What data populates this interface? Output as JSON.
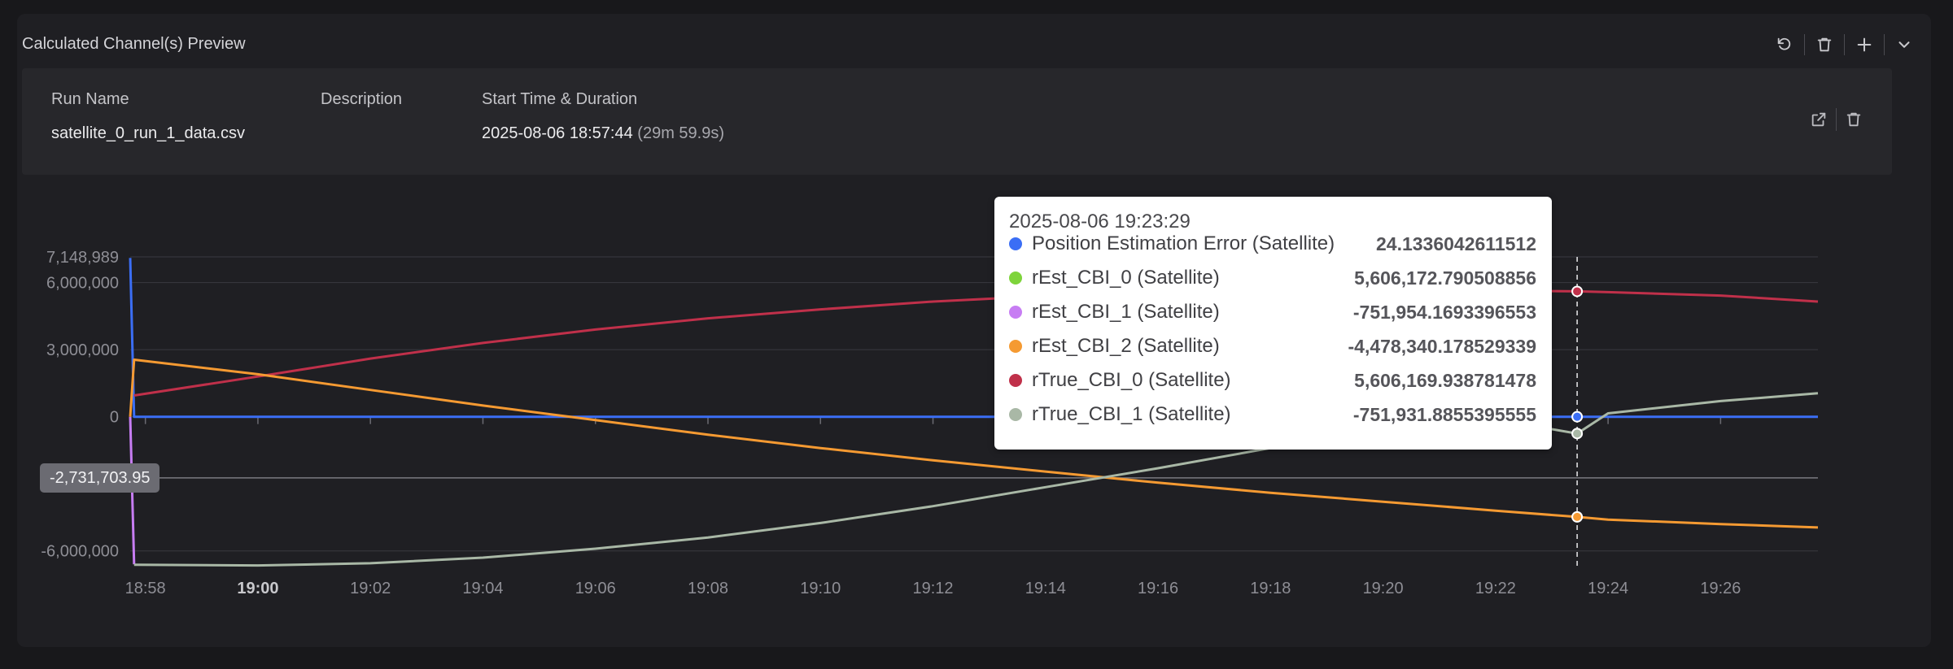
{
  "panel": {
    "title": "Calculated Channel(s) Preview",
    "toolbar": [
      {
        "name": "refresh-icon"
      },
      {
        "name": "trash-icon"
      },
      {
        "name": "plus-icon"
      },
      {
        "name": "chevron-down-icon"
      }
    ]
  },
  "run": {
    "headers": {
      "name": "Run Name",
      "description": "Description",
      "start": "Start Time & Duration"
    },
    "name": "satellite_0_run_1_data.csv",
    "description": "",
    "start_time": "2025-08-06 18:57:44",
    "duration": "(29m 59.9s)"
  },
  "tooltip": {
    "time": "2025-08-06 19:23:29",
    "rows": [
      {
        "name": "Position Estimation Error (Satellite)",
        "value": "24.1336042611512",
        "color": "#3b6ef5"
      },
      {
        "name": "rEst_CBI_0 (Satellite)",
        "value": "5,606,172.790508856",
        "color": "#7ed43b"
      },
      {
        "name": "rEst_CBI_1 (Satellite)",
        "value": "-751,954.1693396553",
        "color": "#c77df3"
      },
      {
        "name": "rEst_CBI_2 (Satellite)",
        "value": "-4,478,340.178529339",
        "color": "#f59a32"
      },
      {
        "name": "rTrue_CBI_0 (Satellite)",
        "value": "5,606,169.938781478",
        "color": "#c0304a"
      },
      {
        "name": "rTrue_CBI_1 (Satellite)",
        "value": "-751,931.8855395555",
        "color": "#a9b8a6"
      }
    ]
  },
  "cursor_value": "-2,731,703.95",
  "chart_data": {
    "type": "line",
    "x_unit": "time",
    "x_ticks": [
      "18:58",
      "19:00",
      "19:02",
      "19:04",
      "19:06",
      "19:08",
      "19:10",
      "19:12",
      "19:14",
      "19:16",
      "19:18",
      "19:20",
      "19:22",
      "19:24",
      "19:26"
    ],
    "x_bold_tick": "19:00",
    "y_ticks": [
      {
        "label": "7,148,989",
        "value": 7148989
      },
      {
        "label": "6,000,000",
        "value": 6000000
      },
      {
        "label": "3,000,000",
        "value": 3000000
      },
      {
        "label": "0",
        "value": 0
      },
      {
        "label": "-6,000,000",
        "value": -6000000
      }
    ],
    "ylim": [
      -6700000,
      7148989
    ],
    "xlim_minutes": [
      -0.27,
      29.73
    ],
    "hover_minute": 25.45,
    "cursor_y_value": -2731703.95,
    "series": [
      {
        "name": "Position Estimation Error (Satellite)",
        "color": "#3b6ef5",
        "x": [
          -0.27,
          -0.2,
          0,
          29.73
        ],
        "y": [
          7100000,
          0,
          0,
          0
        ]
      },
      {
        "name": "rEst_CBI_1 (Satellite)",
        "color": "#c77df3",
        "x": [
          -0.27,
          -0.2
        ],
        "y": [
          0,
          -6600000
        ]
      },
      {
        "name": "rTrue_CBI_0 (Satellite)",
        "color": "#c0304a",
        "x": [
          -0.2,
          2,
          4,
          6,
          8,
          10,
          12,
          14,
          16,
          18,
          20,
          22,
          24,
          25.45,
          26,
          28,
          29.73
        ],
        "y": [
          950000,
          1800000,
          2600000,
          3300000,
          3900000,
          4400000,
          4800000,
          5150000,
          5400000,
          5550000,
          5630000,
          5650000,
          5640000,
          5606170,
          5570000,
          5420000,
          5150000
        ]
      },
      {
        "name": "rEst_CBI_2 (Satellite)",
        "color": "#f59a32",
        "x": [
          -0.27,
          -0.2,
          2,
          4,
          6,
          8,
          10,
          12,
          14,
          16,
          18,
          20,
          22,
          24,
          25.45,
          26,
          28,
          29.73
        ],
        "y": [
          0,
          2550000,
          1900000,
          1200000,
          500000,
          -150000,
          -800000,
          -1400000,
          -1950000,
          -2450000,
          -2950000,
          -3400000,
          -3800000,
          -4200000,
          -4478340,
          -4600000,
          -4800000,
          -4950000
        ]
      },
      {
        "name": "rTrue_CBI_1 (Satellite)",
        "color": "#a9b8a6",
        "x": [
          -0.2,
          2,
          4,
          6,
          8,
          10,
          12,
          14,
          16,
          18,
          20,
          22,
          24,
          25.45,
          26,
          28,
          29.73
        ],
        "y": [
          -6620000,
          -6650000,
          -6550000,
          -6300000,
          -5900000,
          -5400000,
          -4750000,
          -4000000,
          -3150000,
          -2300000,
          -1400000,
          -600000,
          -120000,
          -751932,
          150000,
          700000,
          1050000
        ]
      }
    ]
  }
}
